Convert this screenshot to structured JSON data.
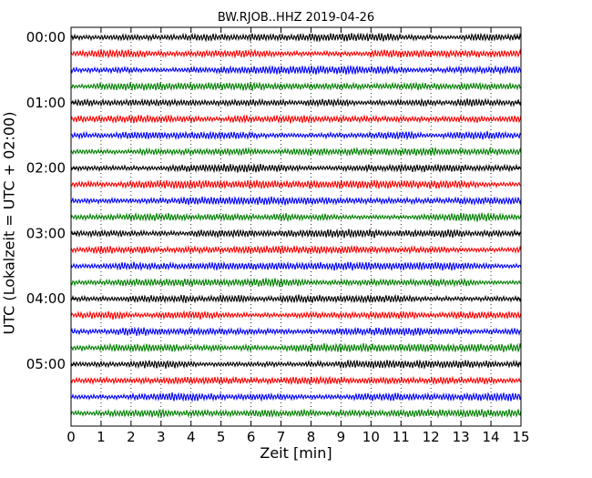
{
  "chart_data": {
    "type": "line",
    "title": "BW.RJOB..HHZ 2019-04-26",
    "xlabel": "Zeit  [min]",
    "ylabel": "UTC (Lokalzeit = UTC + 02:00)",
    "xlim": [
      0,
      15
    ],
    "x_ticks": [
      "0",
      "1",
      "2",
      "3",
      "4",
      "5",
      "6",
      "7",
      "8",
      "9",
      "10",
      "11",
      "12",
      "13",
      "14",
      "15"
    ],
    "y_tick_labels": [
      "00:00",
      "01:00",
      "02:00",
      "03:00",
      "04:00",
      "05:00"
    ],
    "traces_per_hour": 4,
    "trace_count": 24,
    "trace_colors": [
      "#000000",
      "#ff0000",
      "#0000ff",
      "#008000"
    ],
    "grid": "x-dotted"
  }
}
